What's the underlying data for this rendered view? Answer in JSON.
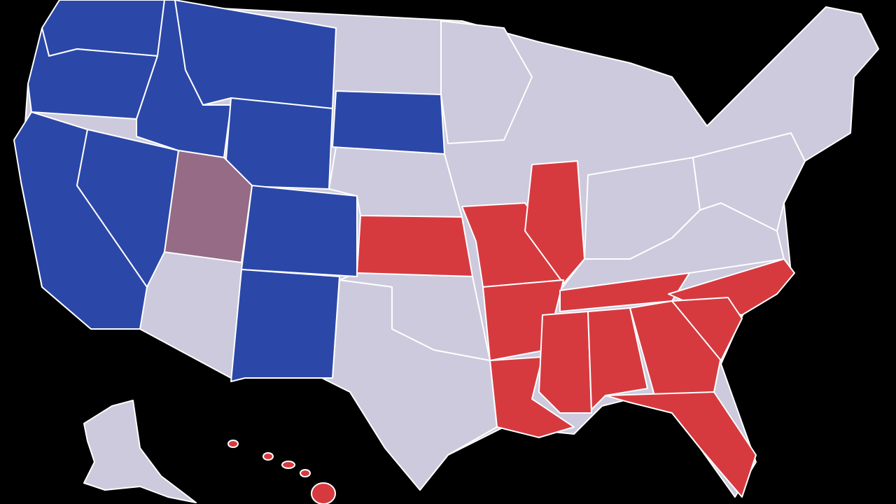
{
  "map": {
    "background": "#000000",
    "border": "#ffffff",
    "regions": [
      {
        "color": "#cccadc"
      },
      {
        "color": "#2b47a8"
      },
      {
        "color": "#956b86"
      },
      {
        "color": "#d63a3f"
      }
    ]
  }
}
